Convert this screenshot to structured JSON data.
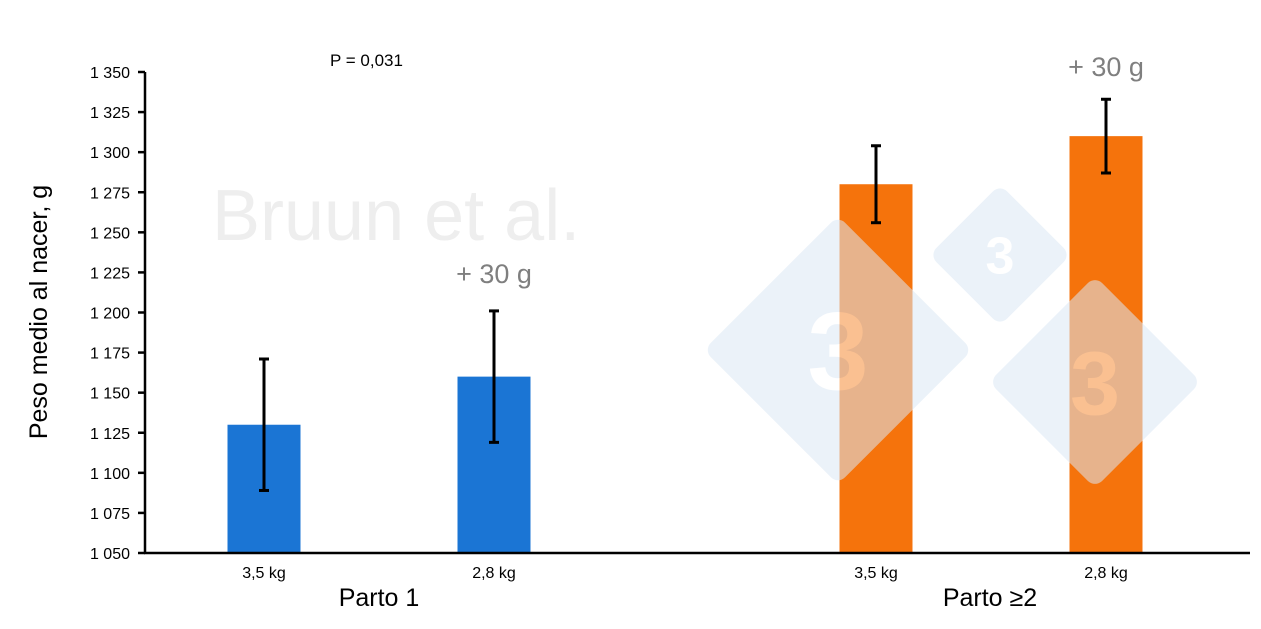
{
  "chart_data": {
    "type": "bar",
    "title": "",
    "ylabel": "Peso medio al nacer, g",
    "xlabel": "",
    "ylim": [
      1050,
      1350
    ],
    "yticks": [
      1050,
      1075,
      1100,
      1125,
      1150,
      1175,
      1200,
      1225,
      1250,
      1275,
      1300,
      1325,
      1350
    ],
    "ytick_labels": [
      "1 050",
      "1 075",
      "1 100",
      "1 125",
      "1 150",
      "1 175",
      "1 200",
      "1 225",
      "1 250",
      "1 275",
      "1 300",
      "1 325",
      "1 350"
    ],
    "grid": false,
    "groups": [
      {
        "label": "Parto 1",
        "color": "#1b75d4",
        "annotation": "+ 30 g",
        "bars": [
          {
            "category": "3,5 kg",
            "value": 1130,
            "error": 41
          },
          {
            "category": "2,8 kg",
            "value": 1160,
            "error": 41
          }
        ]
      },
      {
        "label": "Parto ≥2",
        "color": "#f5730c",
        "annotation": "+ 30 g",
        "bars": [
          {
            "category": "3,5 kg",
            "value": 1280,
            "error": 24
          },
          {
            "category": "2,8 kg",
            "value": 1310,
            "error": 23
          }
        ]
      }
    ],
    "annotations": [
      "P = 0,031"
    ],
    "annotation_color": "#7f7f7f"
  },
  "watermark": {
    "text": "Bruun et al.",
    "logo_text": "333",
    "logo_color": "#dce9f5"
  }
}
